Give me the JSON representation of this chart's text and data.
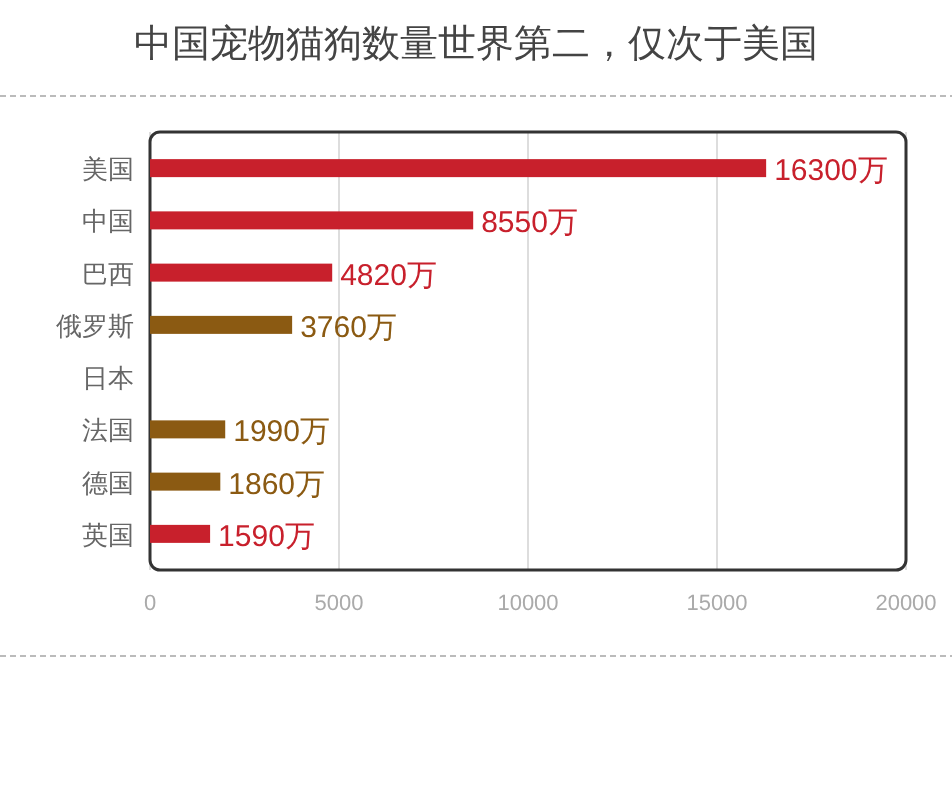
{
  "chart_data": {
    "type": "bar",
    "orientation": "horizontal",
    "title": "中国宠物猫狗数量世界第二，仅次于美国",
    "categories": [
      "美国",
      "中国",
      "巴西",
      "俄罗斯",
      "日本",
      "法国",
      "德国",
      "英国"
    ],
    "values": [
      16300,
      8550,
      4820,
      3760,
      null,
      1990,
      1860,
      1590
    ],
    "value_labels": [
      "16300万",
      "8550万",
      "4820万",
      "3760万",
      null,
      "1990万",
      "1860万",
      "1590万"
    ],
    "colors": [
      "#c8202c",
      "#c8202c",
      "#c8202c",
      "#8b5a12",
      null,
      "#8b5a12",
      "#8b5a12",
      "#c8202c"
    ],
    "xlim": [
      0,
      20000
    ],
    "xticks": [
      0,
      5000,
      10000,
      15000,
      20000
    ],
    "grid": "x"
  }
}
